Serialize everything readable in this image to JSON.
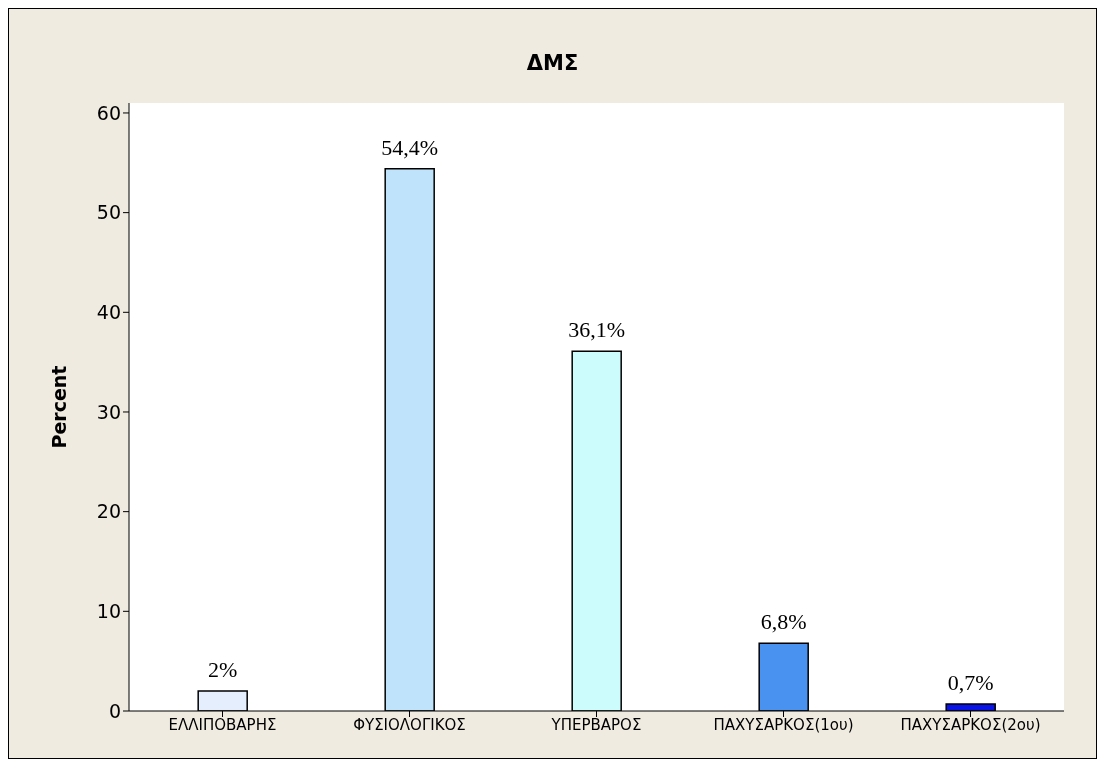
{
  "chart_data": {
    "type": "bar",
    "title": "ΔΜΣ",
    "ylabel": "Percent",
    "categories": [
      "ΕΛΛΙΠΟΒΑΡΗΣ",
      "ΦΥΣΙΟΛΟΓΙΚΟΣ",
      "ΥΠΕΡΒΑΡΟΣ",
      "ΠΑΧΥΣΑΡΚΟΣ(1ου)",
      "ΠΑΧΥΣΑΡΚΟΣ(2ου)"
    ],
    "values": [
      2,
      54.4,
      36.1,
      6.8,
      0.7
    ],
    "value_labels": [
      "2%",
      "54,4%",
      "36,1%",
      "6,8%",
      "0,7%"
    ],
    "colors": [
      "#e5eefc",
      "#bee3fa",
      "#ccfcfc",
      "#4a92f0",
      "#0a14e6"
    ],
    "ylim": [
      0,
      61
    ],
    "yticks": [
      0,
      10,
      20,
      30,
      40,
      50,
      60
    ]
  }
}
